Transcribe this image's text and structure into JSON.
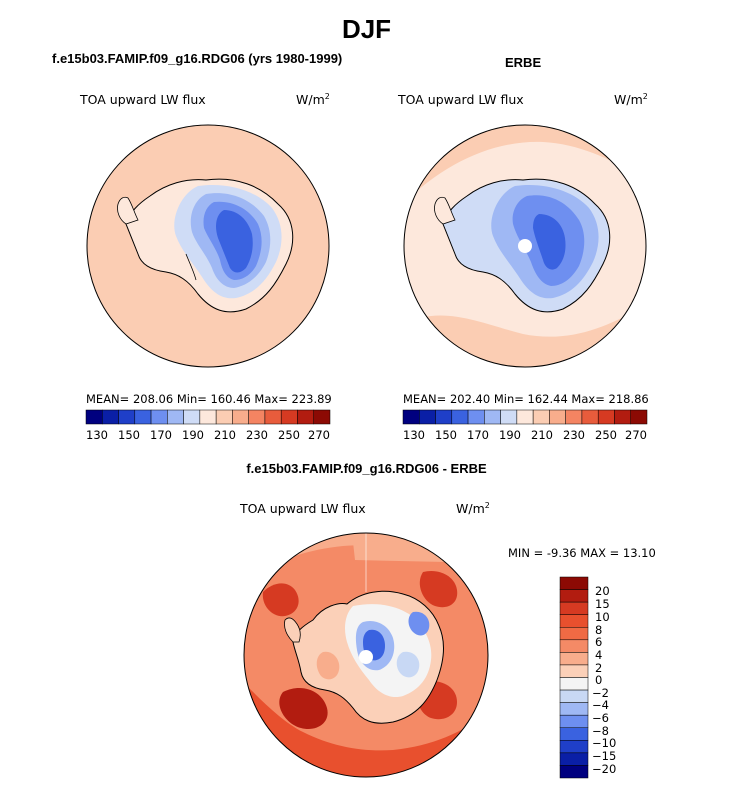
{
  "figure": {
    "title": "DJF"
  },
  "panels": [
    {
      "title": "f.e15b03.FAMIP.f09_g16.RDG06 (yrs 1980-1999)",
      "variable": "TOA upward LW flux",
      "units": "W/m",
      "units_exp": "2",
      "stats": "MEAN= 208.06   Min= 160.46   Max= 223.89",
      "colorbar_labels": [
        "130",
        "150",
        "170",
        "190",
        "210",
        "230",
        "250",
        "270"
      ]
    },
    {
      "title": "ERBE",
      "variable": "TOA upward LW flux",
      "units": "W/m",
      "units_exp": "2",
      "stats": "MEAN= 202.40   Min= 162.44   Max= 218.86",
      "colorbar_labels": [
        "130",
        "150",
        "170",
        "190",
        "210",
        "230",
        "250",
        "270"
      ]
    },
    {
      "title": "f.e15b03.FAMIP.f09_g16.RDG06 - ERBE",
      "variable": "TOA upward LW flux",
      "units": "W/m",
      "units_exp": "2",
      "stats": "MIN =   -9.36 MAX =   13.10",
      "colorbar_labels": [
        "20",
        "15",
        "10",
        "8",
        "6",
        "4",
        "2",
        "0",
        "−2",
        "−4",
        "−6",
        "−8",
        "−10",
        "−15",
        "−20"
      ]
    }
  ],
  "colors": {
    "abs_scale": [
      "#00007f",
      "#0a1fa6",
      "#1f3fc8",
      "#3a62e0",
      "#6e8ff0",
      "#9fb8f4",
      "#cfdcf6",
      "#fde8dc",
      "#fbcdb3",
      "#f8ad8c",
      "#f48462",
      "#e85c3c",
      "#d63a22",
      "#b21c10",
      "#8c0a04"
    ],
    "diff_scale": [
      "#8c0a04",
      "#b21c10",
      "#d63a22",
      "#e8502e",
      "#f06a44",
      "#f48a66",
      "#f8ad8c",
      "#fbd0b8",
      "#f4f4f4",
      "#c8d8f4",
      "#9fb8f4",
      "#6e8ff0",
      "#3a62e0",
      "#1f3fc8",
      "#0a1fa6",
      "#00007f"
    ]
  }
}
